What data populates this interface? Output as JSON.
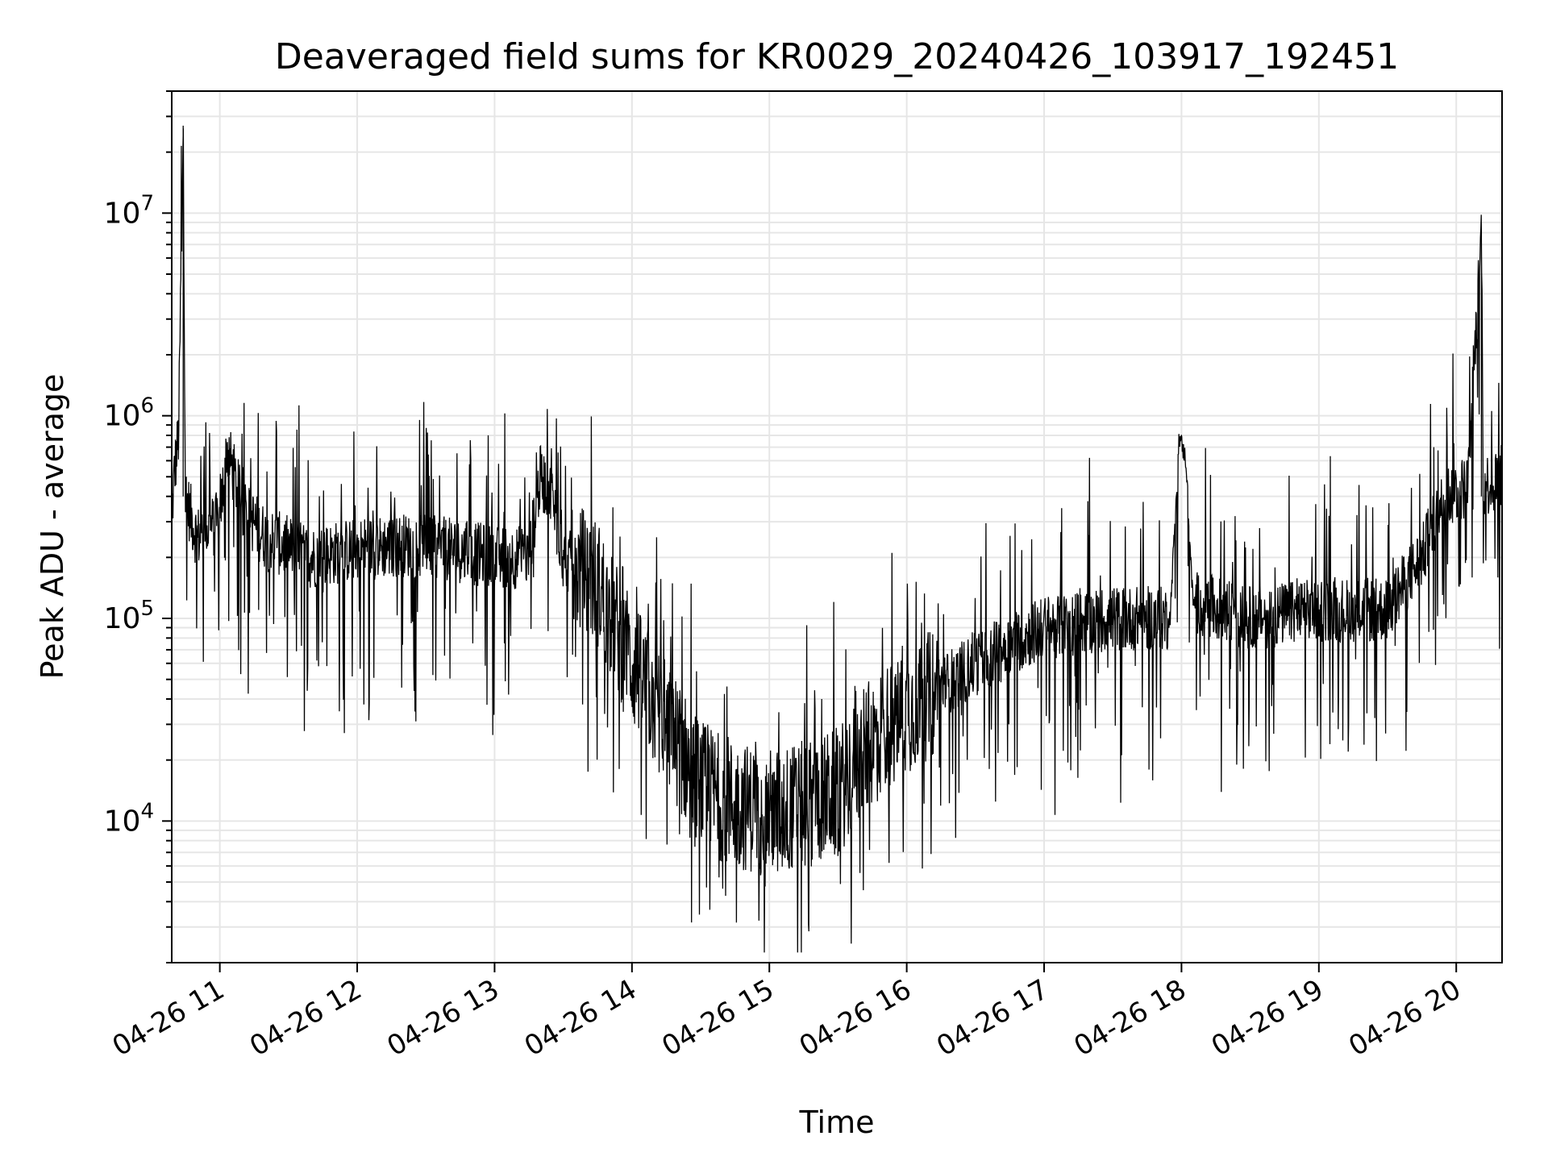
{
  "chart_data": {
    "type": "line",
    "title": "Deaveraged field sums for KR0029_20240426_103917_192451",
    "xlabel": "Time",
    "ylabel": "Peak ADU - average",
    "yscale": "log",
    "ylim": [
      2000,
      40000000
    ],
    "xlim": [
      "2024-04-26T10:39",
      "2024-04-26T20:20"
    ],
    "grid": "on (major and minor)",
    "line_color": "#000000",
    "grid_color": "#e6e6e6",
    "x_ticks": [
      "04-26 11",
      "04-26 12",
      "04-26 13",
      "04-26 14",
      "04-26 15",
      "04-26 16",
      "04-26 17",
      "04-26 18",
      "04-26 19",
      "04-26 20"
    ],
    "y_ticks": [
      {
        "base": "10",
        "exp": "4",
        "value": 10000
      },
      {
        "base": "10",
        "exp": "5",
        "value": 100000
      },
      {
        "base": "10",
        "exp": "6",
        "value": 1000000
      },
      {
        "base": "10",
        "exp": "7",
        "value": 10000000
      }
    ],
    "series": [
      {
        "points": [
          [
            "2024-04-26T10:39",
            300000
          ],
          [
            "2024-04-26T10:40",
            500000
          ],
          [
            "2024-04-26T10:42",
            800000
          ],
          [
            "2024-04-26T10:44",
            27000000
          ],
          [
            "2024-04-26T10:45",
            400000
          ],
          [
            "2024-04-26T10:50",
            250000
          ],
          [
            "2024-04-26T11:00",
            300000
          ],
          [
            "2024-04-26T11:03",
            700000
          ],
          [
            "2024-04-26T11:10",
            350000
          ],
          [
            "2024-04-26T11:20",
            250000
          ],
          [
            "2024-04-26T11:40",
            200000
          ],
          [
            "2024-04-26T12:00",
            220000
          ],
          [
            "2024-04-26T12:20",
            230000
          ],
          [
            "2024-04-26T12:40",
            220000
          ],
          [
            "2024-04-26T13:00",
            200000
          ],
          [
            "2024-04-26T13:15",
            200000
          ],
          [
            "2024-04-26T13:20",
            500000
          ],
          [
            "2024-04-26T13:25",
            400000
          ],
          [
            "2024-04-26T13:30",
            200000
          ],
          [
            "2024-04-26T13:45",
            150000
          ],
          [
            "2024-04-26T14:00",
            60000
          ],
          [
            "2024-04-26T14:15",
            30000
          ],
          [
            "2024-04-26T14:30",
            15000
          ],
          [
            "2024-04-26T14:45",
            12000
          ],
          [
            "2024-04-26T15:00",
            11000
          ],
          [
            "2024-04-26T15:15",
            12000
          ],
          [
            "2024-04-26T15:30",
            14000
          ],
          [
            "2024-04-26T15:45",
            25000
          ],
          [
            "2024-04-26T16:00",
            35000
          ],
          [
            "2024-04-26T16:20",
            50000
          ],
          [
            "2024-04-26T16:40",
            70000
          ],
          [
            "2024-04-26T17:00",
            90000
          ],
          [
            "2024-04-26T17:30",
            100000
          ],
          [
            "2024-04-26T17:55",
            100000
          ],
          [
            "2024-04-26T17:59",
            800000
          ],
          [
            "2024-04-26T18:02",
            600000
          ],
          [
            "2024-04-26T18:05",
            120000
          ],
          [
            "2024-04-26T18:30",
            100000
          ],
          [
            "2024-04-26T19:00",
            110000
          ],
          [
            "2024-04-26T19:30",
            110000
          ],
          [
            "2024-04-26T19:45",
            200000
          ],
          [
            "2024-04-26T19:55",
            400000
          ],
          [
            "2024-04-26T20:05",
            450000
          ],
          [
            "2024-04-26T20:11",
            8200000
          ],
          [
            "2024-04-26T20:12",
            450000
          ],
          [
            "2024-04-26T20:20",
            500000
          ]
        ]
      }
    ]
  }
}
